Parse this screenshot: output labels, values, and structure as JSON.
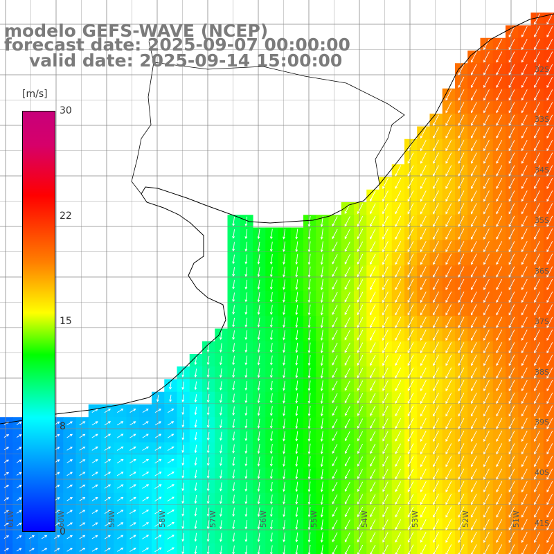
{
  "title": {
    "line1": "modelo GEFS-WAVE (NCEP)",
    "line2": "forecast date: 2025-09-07 00:00:00",
    "line3": "valid date: 2025-09-14 15:00:00"
  },
  "colorbar": {
    "unit": "[m/s]",
    "min": 0,
    "max": 30,
    "ticks": [
      "30",
      "22",
      "15",
      "8",
      "0"
    ],
    "colors": [
      "#0000ff",
      "#00a0ff",
      "#00ffff",
      "#00ff00",
      "#ffff00",
      "#ff8000",
      "#ff0000",
      "#c8007a"
    ]
  },
  "axes": {
    "lat_labels": [
      "32S",
      "33S",
      "34S",
      "35S",
      "36S",
      "37S",
      "38S",
      "39S",
      "40S",
      "41S"
    ],
    "lon_labels": [
      "61W",
      "60W",
      "59W",
      "58W",
      "57W",
      "56W",
      "55W",
      "54W",
      "53W",
      "52W",
      "51W"
    ],
    "lon_range": [
      -61,
      -50
    ],
    "lat_range": [
      -41.3,
      -30.5
    ]
  },
  "field": {
    "variable": "wind speed",
    "arrow_color": "#ffffff",
    "land_color": "#ffffff",
    "coast_color": "#000000",
    "grid_color": "#888888"
  }
}
